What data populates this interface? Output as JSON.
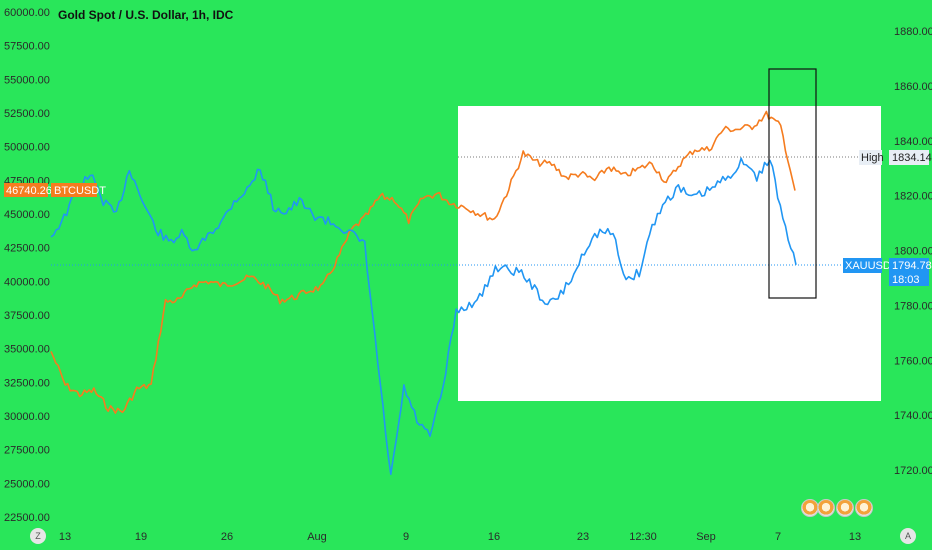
{
  "header": {
    "title": "Gold Spot / U.S. Dollar, 1h, IDC"
  },
  "colors": {
    "background_green": "#29e65a",
    "btc_series": "#f57c1f",
    "gold_series": "#2196f3",
    "panel_white": "#ffffff",
    "high_tag_bg": "#e8eef5",
    "btc_tag_bg": "#f57c1f",
    "gold_tag_bg": "#2196f3"
  },
  "left_axis": {
    "ticks": [
      "60000.00",
      "57500.00",
      "55000.00",
      "52500.00",
      "50000.00",
      "47500.00",
      "45000.00",
      "42500.00",
      "40000.00",
      "37500.00",
      "35000.00",
      "32500.00",
      "30000.00",
      "27500.00",
      "25000.00",
      "22500.00"
    ]
  },
  "right_axis": {
    "ticks": [
      "1880.00",
      "1860.00",
      "1840.00",
      "1820.00",
      "1800.00",
      "1780.00",
      "1760.00",
      "1740.00",
      "1720.00"
    ]
  },
  "time_axis": {
    "ticks": [
      "13",
      "19",
      "26",
      "Aug",
      "9",
      "16",
      "23",
      "12:30",
      "Sep",
      "7",
      "13"
    ]
  },
  "tags": {
    "btc_price": "46740.26",
    "btc_symbol": "BTCUSDT",
    "high_label": "High",
    "high_value": "1834.14",
    "gold_symbol": "XAUUSD",
    "gold_price": "1794.78",
    "gold_countdown": "18:03"
  },
  "buttons": {
    "left_scale": "Z",
    "right_scale": "A"
  },
  "icons": [
    "scale-mode-icon",
    "auto-scale-icon",
    "avatar-icon"
  ],
  "chart_data": {
    "type": "line",
    "title": "Gold Spot / U.S. Dollar, 1h, IDC",
    "x_ticks": [
      "13",
      "19",
      "26",
      "Aug",
      "9",
      "16",
      "23",
      "12:30",
      "Sep",
      "7",
      "13"
    ],
    "series": [
      {
        "name": "BTCUSDT",
        "axis": "left",
        "points": [
          [
            "13",
            34800
          ],
          [
            "15",
            32300
          ],
          [
            "17",
            31600
          ],
          [
            "19",
            31900
          ],
          [
            "21",
            30600
          ],
          [
            "23",
            30300
          ],
          [
            "24",
            32000
          ],
          [
            "25",
            32300
          ],
          [
            "26",
            38500
          ],
          [
            "27",
            38600
          ],
          [
            "28",
            39800
          ],
          [
            "29",
            40000
          ],
          [
            "30",
            39700
          ],
          [
            "31",
            40000
          ],
          [
            "Aug 1",
            40300
          ],
          [
            "Aug 2",
            39700
          ],
          [
            "Aug 3",
            38600
          ],
          [
            "Aug 4",
            38800
          ],
          [
            "Aug 5",
            39300
          ],
          [
            "Aug 6",
            39600
          ],
          [
            "Aug 7",
            41600
          ],
          [
            "Aug 8",
            43800
          ],
          [
            "9",
            44800
          ],
          [
            "10",
            46300
          ],
          [
            "11",
            46100
          ],
          [
            "12",
            44500
          ],
          [
            "13",
            46200
          ],
          [
            "14",
            46500
          ],
          [
            "15",
            45800
          ],
          [
            "16",
            45500
          ],
          [
            "17",
            45000
          ],
          [
            "18",
            44600
          ],
          [
            "19",
            46900
          ],
          [
            "20",
            49500
          ],
          [
            "21",
            48800
          ],
          [
            "22",
            48700
          ],
          [
            "23",
            47700
          ],
          [
            "24",
            48000
          ],
          [
            "25",
            47500
          ],
          [
            "26",
            48500
          ],
          [
            "27",
            47800
          ],
          [
            "28",
            48300
          ],
          [
            "29",
            48800
          ],
          [
            "30",
            47300
          ],
          [
            "31",
            48800
          ],
          [
            "Sep 1",
            49800
          ],
          [
            "Sep 2",
            49800
          ],
          [
            "Sep 3",
            51300
          ],
          [
            "Sep 4",
            51300
          ],
          [
            "Sep 5",
            51500
          ],
          [
            "Sep 6",
            52400
          ],
          [
            "7",
            51500
          ],
          [
            "Sep 7 late",
            46740.26
          ]
        ]
      },
      {
        "name": "XAUUSD",
        "axis": "right",
        "points": [
          [
            "13",
            1805
          ],
          [
            "14",
            1812
          ],
          [
            "15",
            1822
          ],
          [
            "16",
            1828
          ],
          [
            "17",
            1818
          ],
          [
            "18",
            1813
          ],
          [
            "19",
            1830
          ],
          [
            "20",
            1818
          ],
          [
            "21",
            1808
          ],
          [
            "22",
            1803
          ],
          [
            "23",
            1806
          ],
          [
            "24",
            1799
          ],
          [
            "25",
            1806
          ],
          [
            "26",
            1810
          ],
          [
            "27",
            1818
          ],
          [
            "28",
            1822
          ],
          [
            "29",
            1830
          ],
          [
            "30",
            1816
          ],
          [
            "31",
            1814
          ],
          [
            "Aug 1",
            1818
          ],
          [
            "Aug 2",
            1813
          ],
          [
            "Aug 3",
            1811
          ],
          [
            "Aug 4",
            1809
          ],
          [
            "Aug 5",
            1806
          ],
          [
            "Aug 6",
            1802
          ],
          [
            "Aug 9 01:00",
            1759
          ],
          [
            "Aug 9 03:00",
            1717
          ],
          [
            "9",
            1750
          ],
          [
            "10",
            1738
          ],
          [
            "11",
            1732
          ],
          [
            "12",
            1750
          ],
          [
            "13",
            1778
          ],
          [
            "14",
            1780
          ],
          [
            "15",
            1784
          ],
          [
            "16",
            1794
          ],
          [
            "17",
            1793
          ],
          [
            "18",
            1792
          ],
          [
            "19",
            1786
          ],
          [
            "20",
            1780
          ],
          [
            "21",
            1784
          ],
          [
            "22",
            1791
          ],
          [
            "23",
            1802
          ],
          [
            "24",
            1807
          ],
          [
            "25",
            1806
          ],
          [
            "26",
            1789
          ],
          [
            "27",
            1792
          ],
          [
            "28",
            1809
          ],
          [
            "29",
            1818
          ],
          [
            "30",
            1823
          ],
          [
            "31",
            1819
          ],
          [
            "Sep 1",
            1821
          ],
          [
            "Sep 2",
            1824
          ],
          [
            "Sep 3",
            1828
          ],
          [
            "Sep 4",
            1833
          ],
          [
            "Sep 5",
            1826
          ],
          [
            "Sep 6",
            1834.14
          ],
          [
            "Sep 7",
            1811
          ],
          [
            "Sep 7 late",
            1794.78
          ]
        ]
      }
    ],
    "left_axis_range": [
      22500,
      60000
    ],
    "right_axis_range": [
      1710,
      1880
    ],
    "high_line": 1834.14,
    "grid": false,
    "legend": "none"
  }
}
